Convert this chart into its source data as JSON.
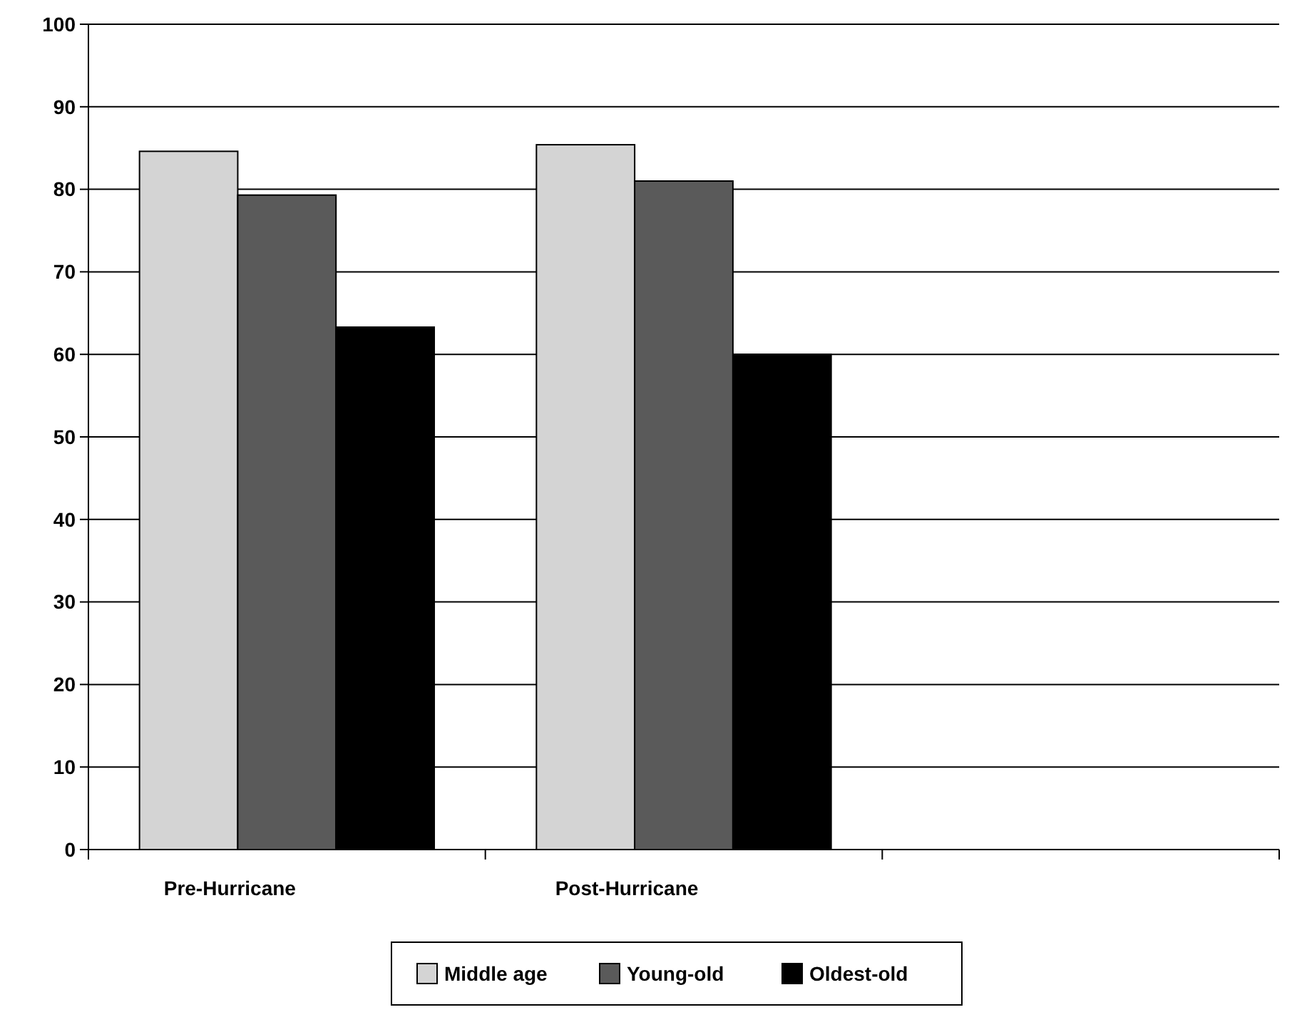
{
  "chart_data": {
    "type": "bar",
    "categories": [
      "Pre-Hurricane",
      "Post-Hurricane",
      null
    ],
    "series": [
      {
        "name": "Middle age",
        "color": "#d4d4d4",
        "values": [
          84.6,
          85.4,
          null
        ]
      },
      {
        "name": "Young-old",
        "color": "#5a5a5a",
        "values": [
          79.3,
          81,
          null
        ]
      },
      {
        "name": "Oldest-old",
        "color": "#000000",
        "values": [
          63.3,
          60,
          null
        ]
      }
    ],
    "ylim": [
      0,
      100
    ],
    "yticks": [
      0,
      10,
      20,
      30,
      40,
      50,
      60,
      70,
      80,
      90,
      100
    ],
    "grid": "y",
    "legend": "bottom"
  }
}
